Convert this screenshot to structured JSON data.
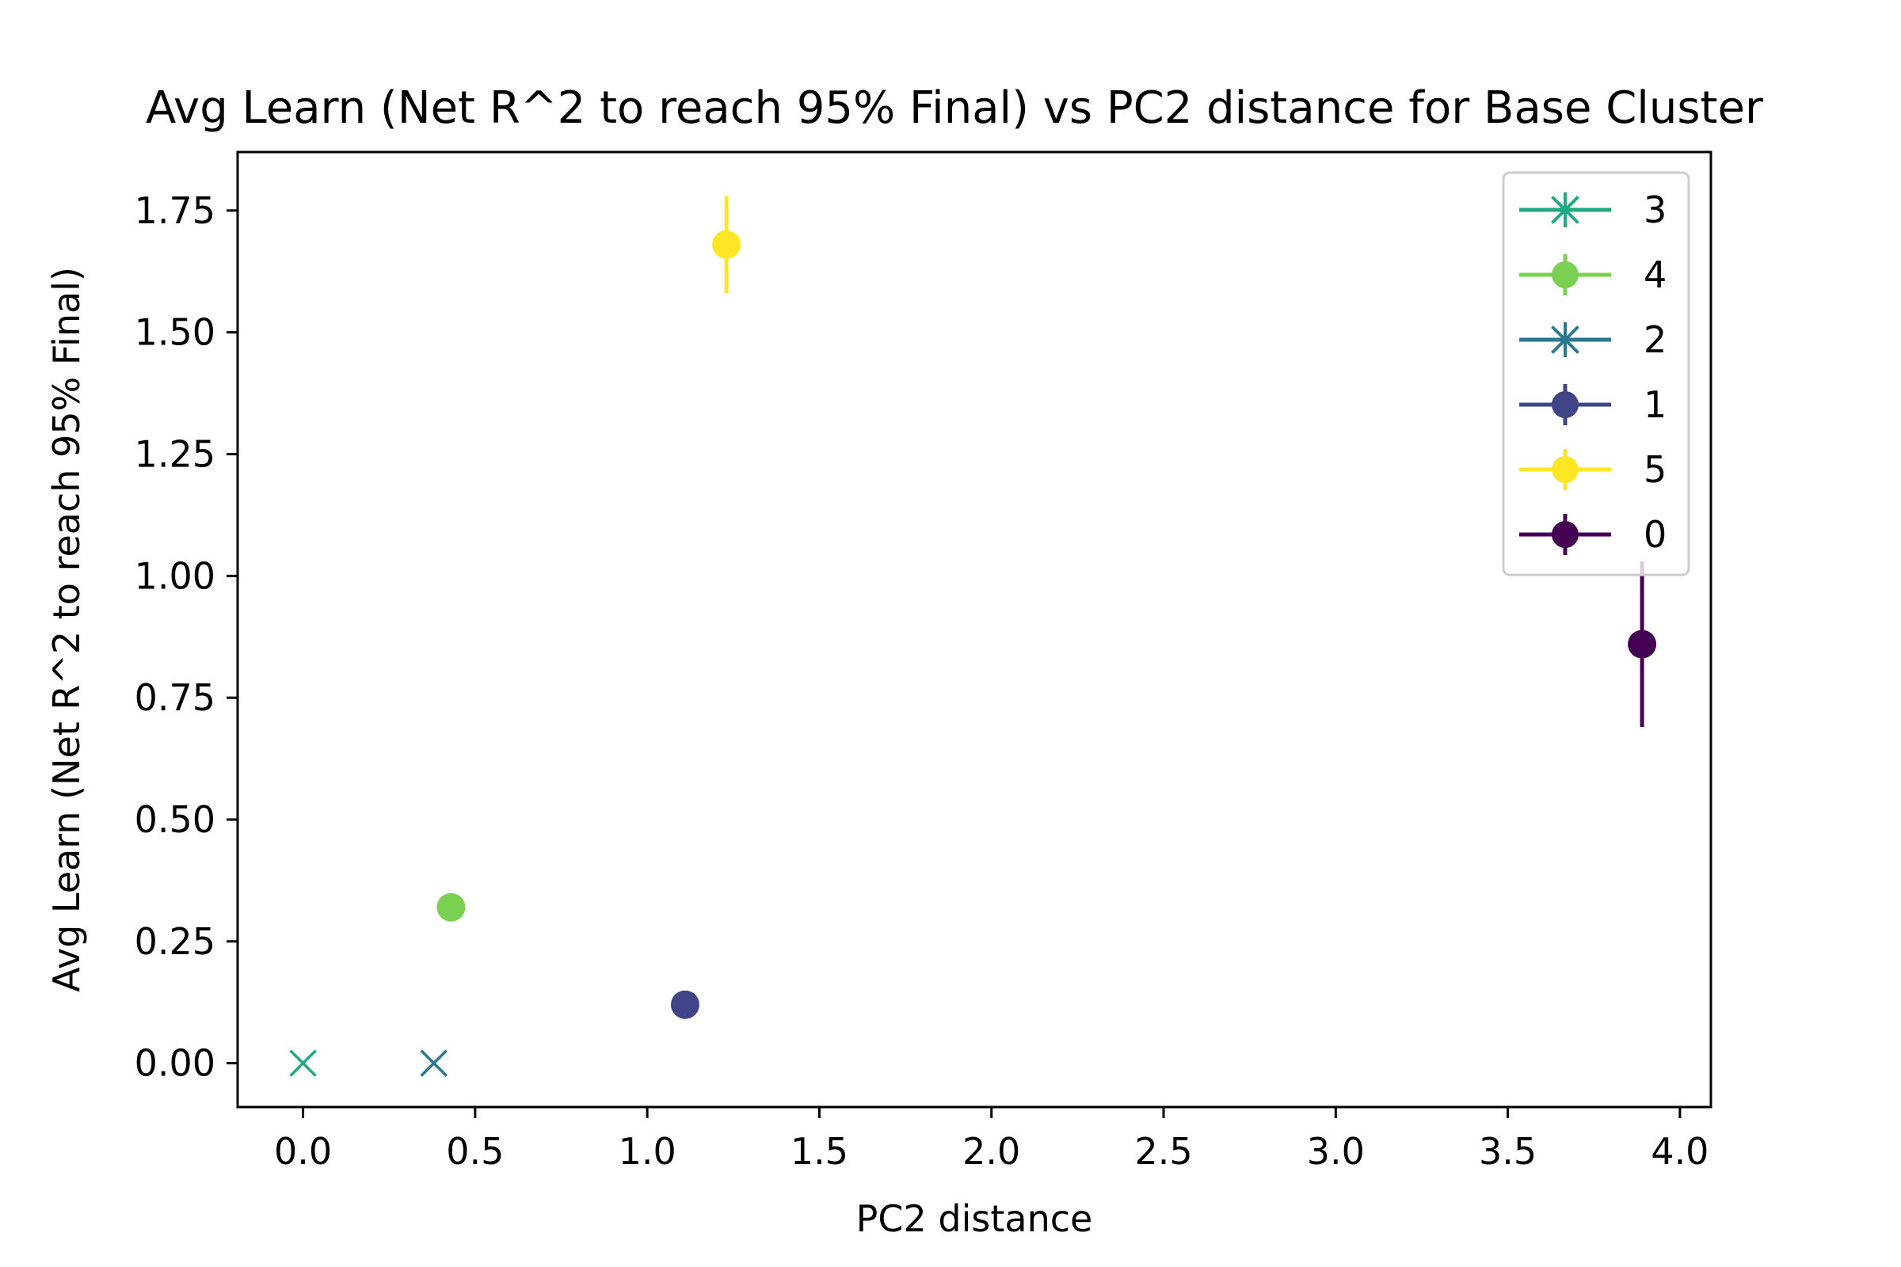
{
  "chart_data": {
    "type": "scatter",
    "title": "Avg Learn (Net R^2 to reach 95% Final) vs PC2 distance for Base Cluster",
    "xlabel": "PC2 distance",
    "ylabel": "Avg Learn (Net R^2 to reach 95% Final)",
    "xlim": [
      -0.19,
      4.09
    ],
    "ylim": [
      -0.09,
      1.87
    ],
    "xticks": [
      0.0,
      0.5,
      1.0,
      1.5,
      2.0,
      2.5,
      3.0,
      3.5,
      4.0
    ],
    "xtick_labels": [
      "0.0",
      "0.5",
      "1.0",
      "1.5",
      "2.0",
      "2.5",
      "3.0",
      "3.5",
      "4.0"
    ],
    "yticks": [
      0.0,
      0.25,
      0.5,
      0.75,
      1.0,
      1.25,
      1.5,
      1.75
    ],
    "ytick_labels": [
      "0.00",
      "0.25",
      "0.50",
      "0.75",
      "1.00",
      "1.25",
      "1.50",
      "1.75"
    ],
    "grid": false,
    "legend_position": "top-right",
    "series": [
      {
        "name": "3",
        "color": "#22a884",
        "marker": "x",
        "legend_marker": "star",
        "x": 0.0,
        "y": 0.0,
        "yerr": 0.0
      },
      {
        "name": "4",
        "color": "#7ad151",
        "marker": "circle",
        "legend_marker": "circle",
        "x": 0.43,
        "y": 0.32,
        "yerr": 0.0
      },
      {
        "name": "2",
        "color": "#2a788e",
        "marker": "x",
        "legend_marker": "star",
        "x": 0.38,
        "y": 0.0,
        "yerr": 0.0
      },
      {
        "name": "1",
        "color": "#414487",
        "marker": "circle",
        "legend_marker": "circle",
        "x": 1.11,
        "y": 0.12,
        "yerr": 0.0
      },
      {
        "name": "5",
        "color": "#fde725",
        "marker": "circle",
        "legend_marker": "circle",
        "x": 1.23,
        "y": 1.68,
        "yerr": 0.1
      },
      {
        "name": "0",
        "color": "#440154",
        "marker": "circle",
        "legend_marker": "circle",
        "x": 3.89,
        "y": 0.86,
        "yerr": 0.17
      }
    ]
  }
}
